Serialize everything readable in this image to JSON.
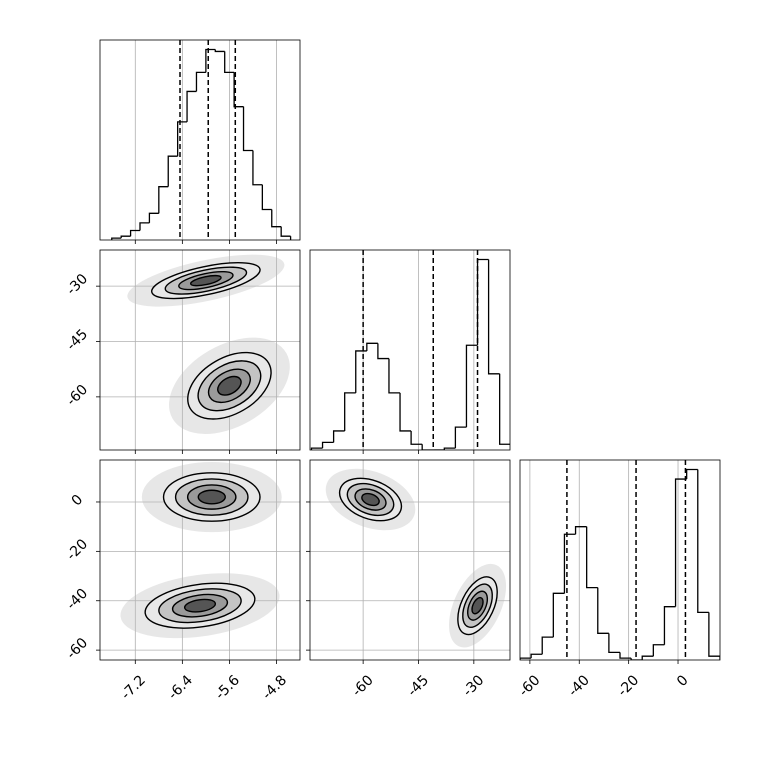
{
  "chart_data": {
    "type": "corner",
    "grid": true,
    "line_color": "#000000",
    "level_colors": [
      "#e8e8e8",
      "#c4c4c4",
      "#9a9a9a",
      "#555555"
    ],
    "levels": [
      1.0,
      0.75,
      0.5,
      0.28
    ],
    "params": [
      {
        "lim": [
          -7.8,
          -4.4
        ],
        "ticks": [
          -7.2,
          -6.4,
          -5.6,
          -4.8
        ],
        "quantiles": [
          -6.44,
          -5.96,
          -5.5
        ],
        "bins": [
          -7.6,
          -7.44,
          -7.28,
          -7.12,
          -6.96,
          -6.8,
          -6.64,
          -6.48,
          -6.32,
          -6.16,
          -6.0,
          -5.84,
          -5.68,
          -5.52,
          -5.36,
          -5.2,
          -5.04,
          -4.88,
          -4.72,
          -4.56
        ],
        "counts": [
          1,
          2,
          5,
          9,
          14,
          28,
          44,
          62,
          78,
          88,
          100,
          99,
          88,
          70,
          47,
          29,
          16,
          7,
          2
        ],
        "ylim": [
          0,
          105
        ]
      },
      {
        "lim": [
          -74.4,
          -20.2
        ],
        "ticks": [
          -60,
          -45,
          -30
        ],
        "quantiles": [
          -60,
          -41,
          -29
        ],
        "bins": [
          -74,
          -71,
          -68,
          -65,
          -62,
          -59,
          -56,
          -53,
          -50,
          -47,
          -44,
          -41,
          -38,
          -35,
          -32,
          -29,
          -26,
          -23,
          -20
        ],
        "counts": [
          1,
          4,
          10,
          30,
          52,
          56,
          48,
          30,
          10,
          3,
          0,
          0,
          1,
          12,
          55,
          100,
          40,
          3
        ],
        "ylim": [
          0,
          105
        ]
      },
      {
        "lim": [
          -64,
          17
        ],
        "ticks": [
          -60,
          -40,
          -20,
          0
        ],
        "quantiles": [
          -45,
          -17,
          3
        ],
        "bins": [
          -64,
          -59.5,
          -55,
          -50.5,
          -46,
          -41.5,
          -37,
          -32.5,
          -28,
          -23.5,
          -19,
          -14.5,
          -10,
          -5.5,
          -1,
          3.5,
          8,
          12.5,
          17
        ],
        "counts": [
          1,
          3,
          12,
          35,
          66,
          70,
          38,
          14,
          4,
          1,
          0,
          2,
          8,
          28,
          95,
          100,
          25,
          2
        ],
        "ylim": [
          0,
          105
        ]
      }
    ],
    "pairs": [
      {
        "x": 0,
        "y": 1,
        "clusters": [
          {
            "x": -6.0,
            "y": -28.5,
            "rx": 0.94,
            "ry": 3.8,
            "angle": -12
          },
          {
            "x": -5.6,
            "y": -57,
            "rx": 0.77,
            "ry": 7.6,
            "angle": -30
          }
        ]
      },
      {
        "x": 0,
        "y": 2,
        "clusters": [
          {
            "x": -5.9,
            "y": 2,
            "rx": 0.82,
            "ry": 9.8,
            "angle": 0
          },
          {
            "x": -6.1,
            "y": -42,
            "rx": 0.94,
            "ry": 8.6,
            "angle": -8
          }
        ]
      },
      {
        "x": 1,
        "y": 2,
        "clusters": [
          {
            "x": -58,
            "y": 1,
            "rx": 8.7,
            "ry": 7.8,
            "angle": 20
          },
          {
            "x": -29,
            "y": -42,
            "rx": 4.4,
            "ry": 12.5,
            "angle": 25
          }
        ]
      }
    ]
  }
}
